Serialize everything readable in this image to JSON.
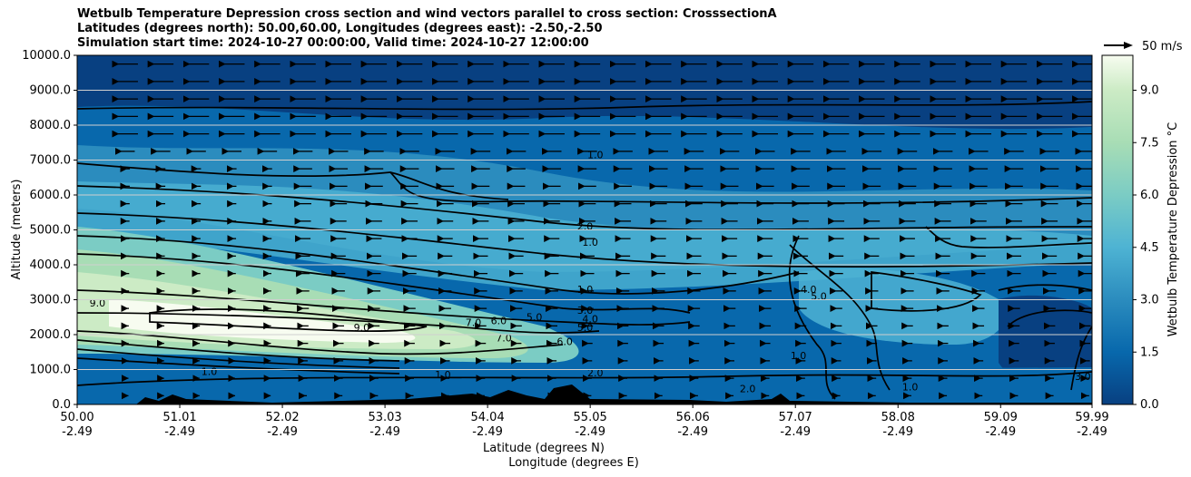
{
  "title_lines": [
    "Wetbulb Temperature Depression cross section and wind vectors parallel to cross section: CrosssectionA",
    "Latitudes (degrees north): 50.00,60.00, Longitudes (degrees east): -2.50,-2.50",
    "Simulation start time: 2024-10-27 00:00:00, Valid time: 2024-10-27 12:00:00"
  ],
  "colors": {
    "low": "#08427e",
    "mid": "#2b8cbe",
    "high": "#7bccc4",
    "peak": "#f7fcf0",
    "terrain": "#000000",
    "grid": "#c8c8c8"
  },
  "chart_data": {
    "type": "contour",
    "x_ticks_lat": [
      "50.00",
      "51.01",
      "52.02",
      "53.03",
      "54.04",
      "55.05",
      "56.06",
      "57.07",
      "58.08",
      "59.09",
      "59.99"
    ],
    "x_ticks_lon": [
      "-2.49",
      "-2.49",
      "-2.49",
      "-2.49",
      "-2.49",
      "-2.49",
      "-2.49",
      "-2.49",
      "-2.49",
      "-2.49",
      "-2.49"
    ],
    "x_tick_values": [
      50.0,
      51.01,
      52.02,
      53.03,
      54.04,
      55.05,
      56.06,
      57.07,
      58.08,
      59.09,
      59.99
    ],
    "xlim": [
      50.0,
      59.99
    ],
    "y_ticks": [
      "0.0",
      "1000.0",
      "2000.0",
      "3000.0",
      "4000.0",
      "5000.0",
      "6000.0",
      "7000.0",
      "8000.0",
      "9000.0",
      "10000.0"
    ],
    "ylim": [
      0,
      10000
    ],
    "xlabel_1": "Latitude (degrees N)",
    "xlabel_2": "Longitude (degrees E)",
    "ylabel": "Altitude (meters)",
    "colorbar_label": "Wetbulb Temperature Depression °C",
    "colorbar_ticks": [
      "0.0",
      "1.5",
      "3.0",
      "4.5",
      "6.0",
      "7.5",
      "9.0"
    ],
    "colorbar_tick_values": [
      0.0,
      1.5,
      3.0,
      4.5,
      6.0,
      7.5,
      9.0
    ],
    "colorbar_range": [
      0,
      10
    ],
    "quiver_key": "50 m/s",
    "contour_labels": [
      {
        "text": "1.0",
        "lat": 55.1,
        "alt": 7050
      },
      {
        "text": "2.0",
        "lat": 55.0,
        "alt": 5000
      },
      {
        "text": "1.0",
        "lat": 55.05,
        "alt": 4550
      },
      {
        "text": "1.0",
        "lat": 55.0,
        "alt": 3200
      },
      {
        "text": "3.0",
        "lat": 55.0,
        "alt": 2600
      },
      {
        "text": "4.0",
        "lat": 55.05,
        "alt": 2350
      },
      {
        "text": "5.0",
        "lat": 55.0,
        "alt": 2100
      },
      {
        "text": "5.0",
        "lat": 54.5,
        "alt": 2400
      },
      {
        "text": "6.0",
        "lat": 54.15,
        "alt": 2300
      },
      {
        "text": "7.0",
        "lat": 53.9,
        "alt": 2250
      },
      {
        "text": "7.0",
        "lat": 54.2,
        "alt": 1800
      },
      {
        "text": "9.0",
        "lat": 52.8,
        "alt": 2100
      },
      {
        "text": "9.0",
        "lat": 50.2,
        "alt": 2800
      },
      {
        "text": "6.0",
        "lat": 54.8,
        "alt": 1700
      },
      {
        "text": "2.0",
        "lat": 55.1,
        "alt": 800
      },
      {
        "text": "1.0",
        "lat": 51.3,
        "alt": 850
      },
      {
        "text": "1.0",
        "lat": 53.6,
        "alt": 750
      },
      {
        "text": "4.0",
        "lat": 57.2,
        "alt": 3200
      },
      {
        "text": "5.0",
        "lat": 57.3,
        "alt": 3000
      },
      {
        "text": "1.0",
        "lat": 57.1,
        "alt": 1300
      },
      {
        "text": "2.0",
        "lat": 56.6,
        "alt": 350
      },
      {
        "text": "1.0",
        "lat": 58.2,
        "alt": 400
      },
      {
        "text": "3.0",
        "lat": 59.9,
        "alt": 700
      }
    ]
  }
}
